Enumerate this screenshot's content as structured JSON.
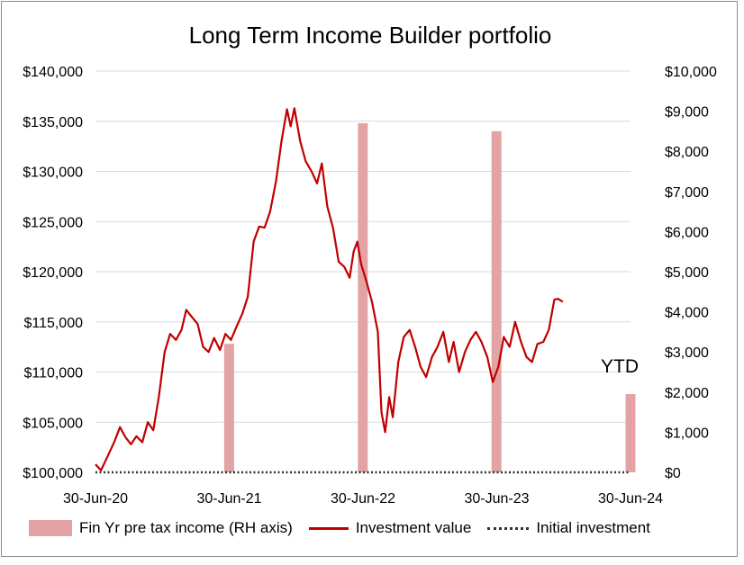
{
  "chart_data": {
    "type": "bar+line",
    "title": "Long Term Income Builder portfolio",
    "x_ticks": [
      "30-Jun-20",
      "30-Jun-21",
      "30-Jun-22",
      "30-Jun-23",
      "30-Jun-24"
    ],
    "y_left": {
      "min": 100000,
      "max": 140000,
      "ticks": [
        "$100,000",
        "$105,000",
        "$110,000",
        "$115,000",
        "$120,000",
        "$125,000",
        "$130,000",
        "$135,000",
        "$140,000"
      ]
    },
    "y_right": {
      "min": 0,
      "max": 10000,
      "ticks": [
        "$0",
        "$1,000",
        "$2,000",
        "$3,000",
        "$4,000",
        "$5,000",
        "$6,000",
        "$7,000",
        "$8,000",
        "$9,000",
        "$10,000"
      ]
    },
    "grid": "horizontal",
    "legend_position": "bottom",
    "annotation": "YTD",
    "series": [
      {
        "name": "Fin Yr pre tax income (RH axis)",
        "kind": "bar",
        "color": "#e3a3a4",
        "points": [
          {
            "x": "2021-06-30",
            "y": 3200
          },
          {
            "x": "2022-06-30",
            "y": 8700
          },
          {
            "x": "2023-06-30",
            "y": 8500
          },
          {
            "x": "2024-06-30",
            "y": 1950
          }
        ]
      },
      {
        "name": "Investment value",
        "kind": "line",
        "color": "#c00000",
        "points": [
          {
            "x": "2020-06-30",
            "y": 100800
          },
          {
            "x": "2020-07-15",
            "y": 100200
          },
          {
            "x": "2020-08-01",
            "y": 101500
          },
          {
            "x": "2020-08-20",
            "y": 103000
          },
          {
            "x": "2020-09-05",
            "y": 104500
          },
          {
            "x": "2020-09-20",
            "y": 103500
          },
          {
            "x": "2020-10-05",
            "y": 102800
          },
          {
            "x": "2020-10-20",
            "y": 103600
          },
          {
            "x": "2020-11-05",
            "y": 103000
          },
          {
            "x": "2020-11-20",
            "y": 105000
          },
          {
            "x": "2020-12-05",
            "y": 104200
          },
          {
            "x": "2020-12-20",
            "y": 107500
          },
          {
            "x": "2021-01-05",
            "y": 112000
          },
          {
            "x": "2021-01-20",
            "y": 113800
          },
          {
            "x": "2021-02-05",
            "y": 113200
          },
          {
            "x": "2021-02-20",
            "y": 114200
          },
          {
            "x": "2021-03-05",
            "y": 116200
          },
          {
            "x": "2021-03-20",
            "y": 115500
          },
          {
            "x": "2021-04-05",
            "y": 114800
          },
          {
            "x": "2021-04-20",
            "y": 112500
          },
          {
            "x": "2021-05-05",
            "y": 112000
          },
          {
            "x": "2021-05-20",
            "y": 113400
          },
          {
            "x": "2021-06-05",
            "y": 112200
          },
          {
            "x": "2021-06-20",
            "y": 113800
          },
          {
            "x": "2021-07-05",
            "y": 113200
          },
          {
            "x": "2021-07-20",
            "y": 114500
          },
          {
            "x": "2021-08-05",
            "y": 115800
          },
          {
            "x": "2021-08-20",
            "y": 117500
          },
          {
            "x": "2021-09-05",
            "y": 123000
          },
          {
            "x": "2021-09-20",
            "y": 124500
          },
          {
            "x": "2021-10-05",
            "y": 124400
          },
          {
            "x": "2021-10-20",
            "y": 126000
          },
          {
            "x": "2021-11-05",
            "y": 129000
          },
          {
            "x": "2021-11-20",
            "y": 133000
          },
          {
            "x": "2021-12-05",
            "y": 136200
          },
          {
            "x": "2021-12-15",
            "y": 134500
          },
          {
            "x": "2021-12-25",
            "y": 136300
          },
          {
            "x": "2022-01-10",
            "y": 133000
          },
          {
            "x": "2022-01-25",
            "y": 131000
          },
          {
            "x": "2022-02-10",
            "y": 130000
          },
          {
            "x": "2022-02-25",
            "y": 128800
          },
          {
            "x": "2022-03-10",
            "y": 130800
          },
          {
            "x": "2022-03-25",
            "y": 126500
          },
          {
            "x": "2022-04-10",
            "y": 124300
          },
          {
            "x": "2022-04-25",
            "y": 121000
          },
          {
            "x": "2022-05-10",
            "y": 120500
          },
          {
            "x": "2022-05-25",
            "y": 119400
          },
          {
            "x": "2022-06-05",
            "y": 122000
          },
          {
            "x": "2022-06-15",
            "y": 123000
          },
          {
            "x": "2022-06-25",
            "y": 120800
          },
          {
            "x": "2022-07-10",
            "y": 119000
          },
          {
            "x": "2022-07-25",
            "y": 117000
          },
          {
            "x": "2022-08-10",
            "y": 114000
          },
          {
            "x": "2022-08-20",
            "y": 106000
          },
          {
            "x": "2022-08-30",
            "y": 104000
          },
          {
            "x": "2022-09-10",
            "y": 107500
          },
          {
            "x": "2022-09-20",
            "y": 105500
          },
          {
            "x": "2022-10-05",
            "y": 111000
          },
          {
            "x": "2022-10-20",
            "y": 113500
          },
          {
            "x": "2022-11-05",
            "y": 114200
          },
          {
            "x": "2022-11-20",
            "y": 112500
          },
          {
            "x": "2022-12-05",
            "y": 110500
          },
          {
            "x": "2022-12-20",
            "y": 109500
          },
          {
            "x": "2023-01-05",
            "y": 111500
          },
          {
            "x": "2023-01-20",
            "y": 112500
          },
          {
            "x": "2023-02-05",
            "y": 114000
          },
          {
            "x": "2023-02-20",
            "y": 111000
          },
          {
            "x": "2023-03-05",
            "y": 113000
          },
          {
            "x": "2023-03-20",
            "y": 110000
          },
          {
            "x": "2023-04-05",
            "y": 112000
          },
          {
            "x": "2023-04-20",
            "y": 113200
          },
          {
            "x": "2023-05-05",
            "y": 114000
          },
          {
            "x": "2023-05-20",
            "y": 113000
          },
          {
            "x": "2023-06-05",
            "y": 111500
          },
          {
            "x": "2023-06-20",
            "y": 109000
          },
          {
            "x": "2023-07-05",
            "y": 110500
          },
          {
            "x": "2023-07-20",
            "y": 113500
          },
          {
            "x": "2023-08-05",
            "y": 112500
          },
          {
            "x": "2023-08-20",
            "y": 115000
          },
          {
            "x": "2023-09-05",
            "y": 113000
          },
          {
            "x": "2023-09-20",
            "y": 111500
          },
          {
            "x": "2023-10-05",
            "y": 111000
          },
          {
            "x": "2023-10-20",
            "y": 112800
          },
          {
            "x": "2023-11-05",
            "y": 113000
          },
          {
            "x": "2023-11-20",
            "y": 114200
          },
          {
            "x": "2023-12-05",
            "y": 117200
          },
          {
            "x": "2023-12-15",
            "y": 117300
          },
          {
            "x": "2023-12-28",
            "y": 117000
          }
        ]
      },
      {
        "name": "Initial investment",
        "kind": "line-dotted",
        "color": "#333333",
        "points": [
          {
            "x": "2020-06-30",
            "y": 100000
          },
          {
            "x": "2024-06-30",
            "y": 100000
          }
        ]
      }
    ]
  }
}
